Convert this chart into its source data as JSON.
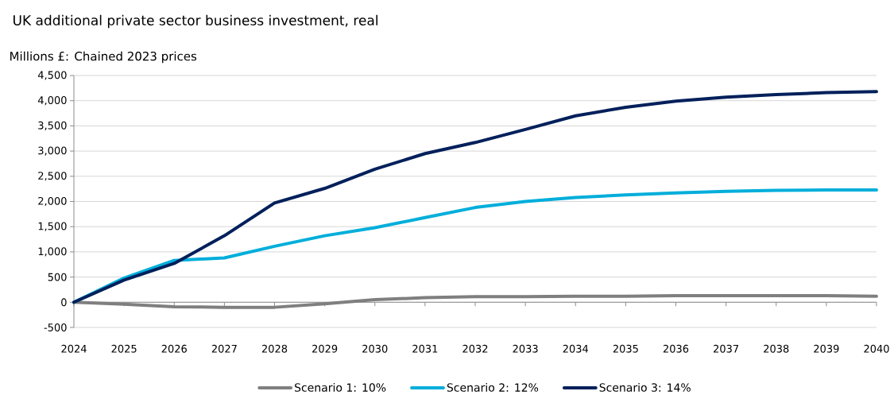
{
  "chart_data": {
    "type": "line",
    "title": "UK additional private sector business investment, real",
    "ylabel": "Millions £: Chained 2023 prices",
    "x": [
      2024,
      2025,
      2026,
      2027,
      2028,
      2029,
      2030,
      2031,
      2032,
      2033,
      2034,
      2035,
      2036,
      2037,
      2038,
      2039,
      2040
    ],
    "series": [
      {
        "name": "Scenario 1: 10%",
        "color": "#7f7f7f",
        "values": [
          0,
          -40,
          -90,
          -100,
          -100,
          -30,
          50,
          90,
          110,
          110,
          120,
          120,
          130,
          130,
          130,
          130,
          120
        ]
      },
      {
        "name": "Scenario 2: 12%",
        "color": "#00aedb",
        "values": [
          0,
          480,
          830,
          880,
          1110,
          1320,
          1480,
          1680,
          1880,
          2000,
          2080,
          2130,
          2170,
          2200,
          2220,
          2230,
          2230
        ]
      },
      {
        "name": "Scenario 3: 14%",
        "color": "#00205b",
        "values": [
          0,
          440,
          770,
          1320,
          1970,
          2260,
          2640,
          2950,
          3170,
          3430,
          3700,
          3870,
          3990,
          4070,
          4120,
          4160,
          4180
        ]
      }
    ],
    "xlim": [
      2024,
      2040
    ],
    "xticks": [
      2024,
      2025,
      2026,
      2027,
      2028,
      2029,
      2030,
      2031,
      2032,
      2033,
      2034,
      2035,
      2036,
      2037,
      2038,
      2039,
      2040
    ],
    "ylim": [
      -500,
      4500
    ],
    "yticks": [
      {
        "value": -500,
        "label": "-500"
      },
      0,
      500,
      {
        "value": 1000,
        "label": "1,000"
      },
      {
        "value": 1500,
        "label": "1,500"
      },
      {
        "value": 2000,
        "label": "2,000"
      },
      {
        "value": 2500,
        "label": "2,500"
      },
      {
        "value": 3000,
        "label": "3,000"
      },
      {
        "value": 3500,
        "label": "3,500"
      },
      {
        "value": 4000,
        "label": "4,000"
      },
      {
        "value": 4500,
        "label": "4,500"
      }
    ],
    "grid": "y",
    "legend": "bottom",
    "marker": "none",
    "line_style": "solid"
  }
}
